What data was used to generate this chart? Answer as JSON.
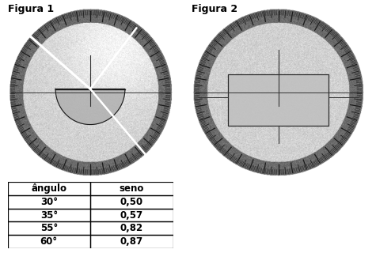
{
  "title1": "Figura 1",
  "title2": "Figura 2",
  "table_headers": [
    "ângulo",
    "seno"
  ],
  "table_data": [
    [
      "30°",
      "0,50"
    ],
    [
      "35°",
      "0,57"
    ],
    [
      "55°",
      "0,82"
    ],
    [
      "60°",
      "0,87"
    ]
  ],
  "bg_color": "#ffffff",
  "outer_ring_color": "#606060",
  "inner_bg_color": "#c8c8c8",
  "center_bg_color": "#d8d8d8",
  "tick_color": "#1a1a1a",
  "semicircle_fill": "#b0b0b0",
  "semicircle_edge": "#1a1a1a",
  "rect_fill": "#c0c0c0",
  "rect_edge": "#1a1a1a",
  "beam_color": "#ffffff",
  "crosshair_color": "#333333",
  "title_fontsize": 9,
  "table_fontsize": 8.5,
  "noise_seed": 42
}
